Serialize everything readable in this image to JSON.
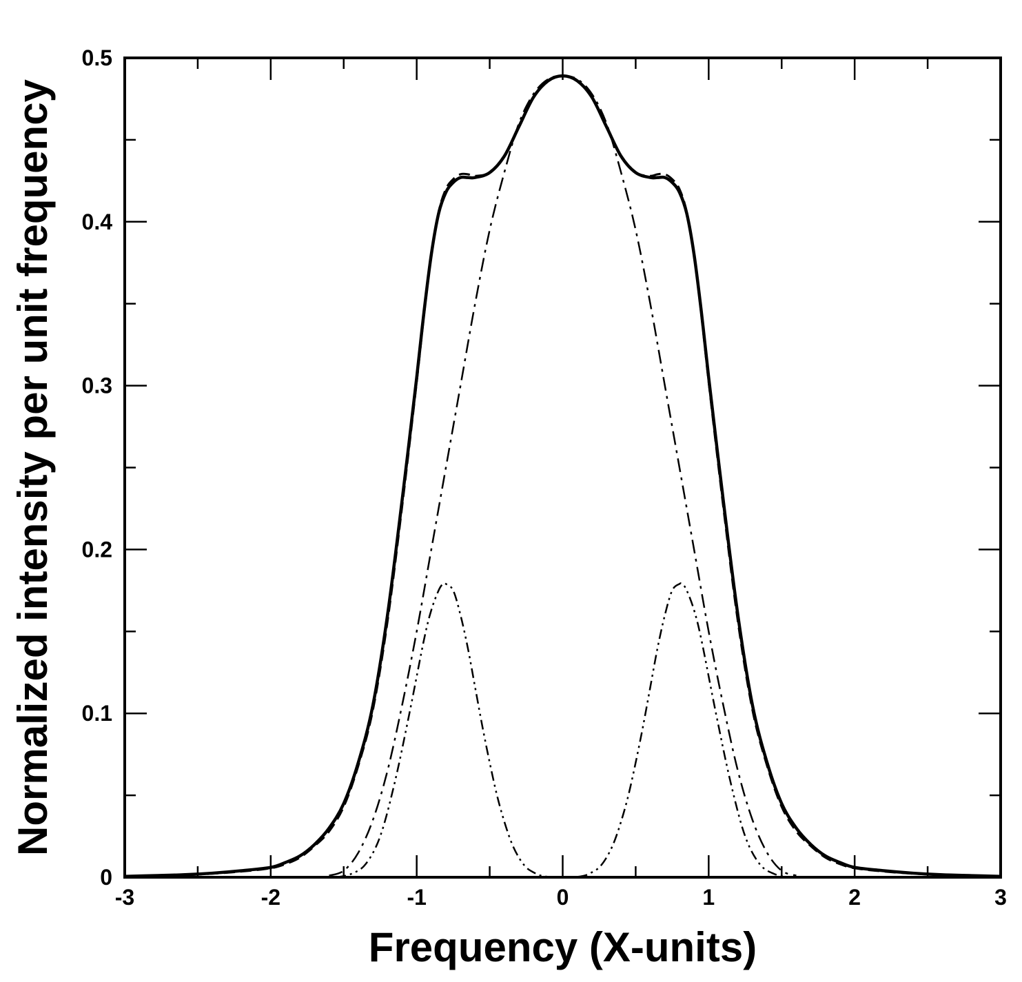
{
  "chart_data": {
    "type": "line",
    "xlabel": "Frequency (X-units)",
    "ylabel": "Normalized intensity per unit frequency",
    "xlim": [
      -3,
      3
    ],
    "ylim": [
      0,
      0.5
    ],
    "x_ticks": [
      -3,
      -2,
      -1,
      0,
      1,
      2,
      3
    ],
    "x_tick_labels": [
      "-3",
      "-2",
      "-1",
      "0",
      "1",
      "2",
      "3"
    ],
    "y_ticks": [
      0,
      0.1,
      0.2,
      0.3,
      0.4,
      0.5
    ],
    "y_tick_labels": [
      "0",
      "0.1",
      "0.2",
      "0.3",
      "0.4",
      "0.5"
    ],
    "x_minor_step": 0.5,
    "y_minor_step": 0.05,
    "grid": false,
    "legend": "none",
    "series": [
      {
        "style": "solid",
        "color": "#000000",
        "x": [
          -3.0,
          -2.8,
          -2.6,
          -2.4,
          -2.2,
          -2.0,
          -1.9,
          -1.8,
          -1.7,
          -1.6,
          -1.5,
          -1.4,
          -1.3,
          -1.2,
          -1.1,
          -1.0,
          -0.95,
          -0.9,
          -0.85,
          -0.8,
          -0.75,
          -0.7,
          -0.65,
          -0.6,
          -0.5,
          -0.4,
          -0.3,
          -0.2,
          -0.1,
          0.0,
          0.1,
          0.2,
          0.3,
          0.4,
          0.5,
          0.6,
          0.65,
          0.7,
          0.75,
          0.8,
          0.85,
          0.9,
          0.95,
          1.0,
          1.1,
          1.2,
          1.3,
          1.4,
          1.5,
          1.6,
          1.7,
          1.8,
          1.9,
          2.0,
          2.2,
          2.4,
          2.6,
          2.8,
          3.0
        ],
        "y": [
          0.0005,
          0.001,
          0.0015,
          0.0025,
          0.004,
          0.006,
          0.009,
          0.013,
          0.02,
          0.03,
          0.045,
          0.07,
          0.105,
          0.16,
          0.23,
          0.305,
          0.345,
          0.38,
          0.405,
          0.418,
          0.424,
          0.427,
          0.427,
          0.427,
          0.43,
          0.44,
          0.458,
          0.476,
          0.486,
          0.489,
          0.486,
          0.476,
          0.458,
          0.44,
          0.43,
          0.427,
          0.427,
          0.427,
          0.424,
          0.418,
          0.405,
          0.38,
          0.345,
          0.305,
          0.23,
          0.16,
          0.105,
          0.07,
          0.045,
          0.03,
          0.02,
          0.013,
          0.009,
          0.006,
          0.004,
          0.0025,
          0.0015,
          0.001,
          0.0005
        ]
      },
      {
        "style": "dashed",
        "color": "#000000",
        "x": [
          -3.0,
          -2.8,
          -2.6,
          -2.4,
          -2.2,
          -2.0,
          -1.9,
          -1.8,
          -1.7,
          -1.6,
          -1.5,
          -1.4,
          -1.3,
          -1.2,
          -1.1,
          -1.0,
          -0.95,
          -0.9,
          -0.85,
          -0.8,
          -0.75,
          -0.7,
          -0.65,
          -0.6,
          -0.5,
          -0.4,
          -0.3,
          -0.2,
          -0.1,
          0.0,
          0.1,
          0.2,
          0.3,
          0.4,
          0.5,
          0.6,
          0.65,
          0.7,
          0.75,
          0.8,
          0.85,
          0.9,
          0.95,
          1.0,
          1.1,
          1.2,
          1.3,
          1.4,
          1.5,
          1.6,
          1.7,
          1.8,
          1.9,
          2.0,
          2.2,
          2.4,
          2.6,
          2.8,
          3.0
        ],
        "y": [
          0.0004,
          0.0008,
          0.0013,
          0.0022,
          0.0035,
          0.0055,
          0.008,
          0.012,
          0.019,
          0.028,
          0.043,
          0.068,
          0.102,
          0.156,
          0.226,
          0.302,
          0.343,
          0.379,
          0.406,
          0.42,
          0.426,
          0.429,
          0.429,
          0.428,
          0.43,
          0.44,
          0.458,
          0.476,
          0.486,
          0.489,
          0.486,
          0.476,
          0.458,
          0.44,
          0.43,
          0.428,
          0.429,
          0.429,
          0.426,
          0.42,
          0.406,
          0.379,
          0.343,
          0.302,
          0.226,
          0.156,
          0.102,
          0.068,
          0.043,
          0.028,
          0.019,
          0.012,
          0.008,
          0.0055,
          0.0035,
          0.0022,
          0.0013,
          0.0008,
          0.0004
        ]
      },
      {
        "style": "dash-dot",
        "color": "#000000",
        "x": [
          -1.6,
          -1.5,
          -1.4,
          -1.3,
          -1.2,
          -1.1,
          -1.0,
          -0.9,
          -0.8,
          -0.7,
          -0.6,
          -0.5,
          -0.4,
          -0.3,
          -0.2,
          -0.1,
          0.0,
          0.1,
          0.2,
          0.3,
          0.4,
          0.5,
          0.6,
          0.7,
          0.8,
          0.9,
          1.0,
          1.1,
          1.2,
          1.3,
          1.4,
          1.5,
          1.6
        ],
        "y": [
          0.001,
          0.004,
          0.015,
          0.035,
          0.065,
          0.105,
          0.15,
          0.2,
          0.25,
          0.3,
          0.35,
          0.395,
          0.43,
          0.46,
          0.478,
          0.487,
          0.489,
          0.487,
          0.478,
          0.46,
          0.43,
          0.395,
          0.35,
          0.3,
          0.25,
          0.2,
          0.15,
          0.105,
          0.065,
          0.035,
          0.015,
          0.004,
          0.001
        ]
      },
      {
        "style": "dash-dot-dot",
        "color": "#000000",
        "x": [
          -1.55,
          -1.45,
          -1.35,
          -1.25,
          -1.15,
          -1.05,
          -0.95,
          -0.9,
          -0.85,
          -0.82,
          -0.8,
          -0.75,
          -0.7,
          -0.65,
          -0.6,
          -0.55,
          -0.5,
          -0.45,
          -0.4,
          -0.35,
          -0.3,
          -0.25,
          -0.2,
          -0.15,
          -0.1,
          -0.05,
          0.0,
          0.05,
          0.1,
          0.15,
          0.2,
          0.25,
          0.3,
          0.35,
          0.4,
          0.45,
          0.5,
          0.55,
          0.6,
          0.65,
          0.7,
          0.75,
          0.8,
          0.82,
          0.85,
          0.9,
          0.95,
          1.05,
          1.15,
          1.25,
          1.35,
          1.45,
          1.55
        ],
        "y": [
          0.0,
          0.002,
          0.008,
          0.025,
          0.058,
          0.1,
          0.145,
          0.163,
          0.175,
          0.179,
          0.179,
          0.175,
          0.16,
          0.14,
          0.116,
          0.092,
          0.07,
          0.05,
          0.034,
          0.021,
          0.012,
          0.006,
          0.003,
          0.001,
          0.0003,
          0.0,
          0.0,
          0.0,
          0.0003,
          0.001,
          0.003,
          0.006,
          0.012,
          0.021,
          0.034,
          0.05,
          0.07,
          0.092,
          0.116,
          0.14,
          0.16,
          0.175,
          0.179,
          0.179,
          0.175,
          0.163,
          0.145,
          0.1,
          0.058,
          0.025,
          0.008,
          0.002,
          0.0
        ]
      }
    ]
  }
}
